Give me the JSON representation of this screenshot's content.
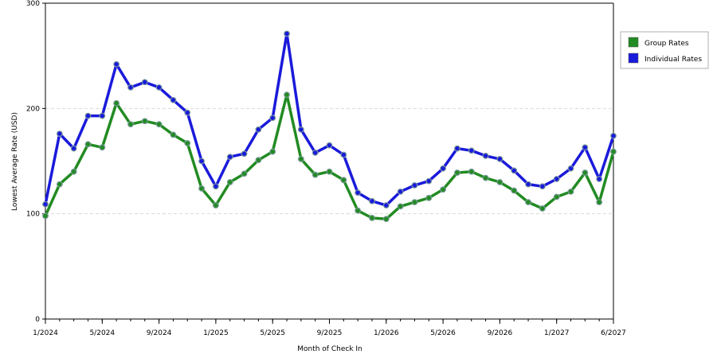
{
  "chart_data": {
    "type": "line",
    "title": "",
    "xlabel": "Month of Check In",
    "ylabel": "Lowest Average Rate (USD)",
    "ylim": [
      0,
      300
    ],
    "yticks": [
      0,
      100,
      200,
      300
    ],
    "x_tick_labels": [
      "1/2024",
      "5/2024",
      "9/2024",
      "1/2025",
      "5/2025",
      "9/2025",
      "1/2026",
      "5/2026",
      "9/2026",
      "1/2027",
      "6/2027"
    ],
    "x": [
      "1/2024",
      "2/2024",
      "3/2024",
      "4/2024",
      "5/2024",
      "6/2024",
      "7/2024",
      "8/2024",
      "9/2024",
      "10/2024",
      "11/2024",
      "12/2024",
      "1/2025",
      "2/2025",
      "3/2025",
      "4/2025",
      "5/2025",
      "6/2025",
      "7/2025",
      "8/2025",
      "9/2025",
      "10/2025",
      "11/2025",
      "12/2025",
      "1/2026",
      "2/2026",
      "3/2026",
      "4/2026",
      "5/2026",
      "6/2026",
      "7/2026",
      "8/2026",
      "9/2026",
      "10/2026",
      "11/2026",
      "12/2026",
      "1/2027",
      "2/2027",
      "3/2027",
      "4/2027",
      "5/2027"
    ],
    "grid": true,
    "legend_position": "right",
    "series": [
      {
        "name": "Group Rates",
        "color": "#228b22",
        "values": [
          98,
          128,
          140,
          166,
          163,
          205,
          185,
          188,
          185,
          175,
          167,
          124,
          108,
          130,
          138,
          151,
          159,
          213,
          152,
          137,
          140,
          132,
          103,
          96,
          95,
          107,
          111,
          115,
          123,
          139,
          140,
          134,
          130,
          122,
          111,
          105,
          116,
          121,
          139,
          111,
          159
        ]
      },
      {
        "name": "Individual Rates",
        "color": "#1a1adb",
        "values": [
          109,
          176,
          162,
          193,
          193,
          242,
          220,
          225,
          220,
          208,
          196,
          150,
          126,
          154,
          157,
          180,
          191,
          271,
          180,
          158,
          165,
          156,
          120,
          112,
          108,
          121,
          127,
          131,
          143,
          162,
          160,
          155,
          152,
          141,
          128,
          126,
          133,
          143,
          163,
          133,
          174
        ]
      }
    ]
  }
}
